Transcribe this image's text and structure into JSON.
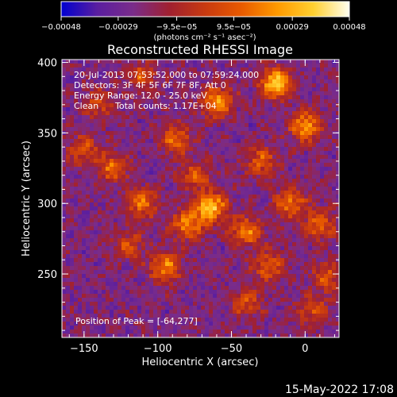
{
  "chart_data": {
    "type": "heatmap",
    "title": "Reconstructed RHESSI Image",
    "xlabel": "Heliocentric X (arcsec)",
    "ylabel": "Heliocentric Y (arcsec)",
    "xlim": [
      -165,
      23
    ],
    "ylim": [
      205,
      402
    ],
    "x_ticks": [
      -150,
      -100,
      -50,
      0
    ],
    "y_ticks": [
      250,
      300,
      350,
      400
    ],
    "x_tick_labels": [
      "−150",
      "−100",
      "−50",
      "0"
    ],
    "y_tick_labels": [
      "250",
      "300",
      "350",
      "400"
    ],
    "colorbar": {
      "range": [
        -0.00048,
        0.00048
      ],
      "tick_values": [
        -0.00048,
        -0.00029,
        -9.5e-05,
        9.5e-05,
        0.00029,
        0.00048
      ],
      "tick_labels": [
        "−0.00048",
        "−0.00029",
        "−9.5e−05",
        "9.5e−05",
        "0.00029",
        "0.00048"
      ],
      "unit_label": "(photons cm⁻² s⁻¹ asec⁻²)",
      "colors": [
        "#0000d0",
        "#5a1ea0",
        "#7a2c8a",
        "#a02030",
        "#c83a10",
        "#e85a00",
        "#ff9a00",
        "#ffd030",
        "#fffff0"
      ]
    },
    "annotations": {
      "time_range": "20-Jul-2013 07:53:52.000 to 07:59:24.000",
      "detectors": "Detectors: 3F 4F 5F 6F 7F 8F, Att 0",
      "energy_range": "Energy Range: 12.0 - 25.0 keV",
      "method": "Clean",
      "total_counts": "Total counts: 1.17E+04",
      "peak": "Position of Peak = [-64,277]"
    },
    "peak": {
      "x": -64,
      "y": 277
    },
    "bright_blobs": [
      {
        "x": -20,
        "y": 385,
        "amp": 1.0
      },
      {
        "x": -60,
        "y": 372,
        "amp": 0.8
      },
      {
        "x": 0,
        "y": 355,
        "amp": 0.8
      },
      {
        "x": -88,
        "y": 345,
        "amp": 0.6
      },
      {
        "x": -130,
        "y": 325,
        "amp": 0.6
      },
      {
        "x": -150,
        "y": 338,
        "amp": 0.5
      },
      {
        "x": -110,
        "y": 300,
        "amp": 0.6
      },
      {
        "x": -64,
        "y": 297,
        "amp": 0.95
      },
      {
        "x": -80,
        "y": 285,
        "amp": 0.7
      },
      {
        "x": -40,
        "y": 280,
        "amp": 0.7
      },
      {
        "x": -10,
        "y": 300,
        "amp": 0.65
      },
      {
        "x": 10,
        "y": 285,
        "amp": 0.6
      },
      {
        "x": -120,
        "y": 270,
        "amp": 0.45
      },
      {
        "x": -95,
        "y": 255,
        "amp": 0.7
      },
      {
        "x": -25,
        "y": 255,
        "amp": 0.55
      },
      {
        "x": 15,
        "y": 248,
        "amp": 0.5
      },
      {
        "x": -40,
        "y": 230,
        "amp": 0.45
      },
      {
        "x": 5,
        "y": 225,
        "amp": 0.45
      },
      {
        "x": -75,
        "y": 320,
        "amp": 0.5
      },
      {
        "x": -30,
        "y": 330,
        "amp": 0.55
      },
      {
        "x": -140,
        "y": 370,
        "amp": 0.45
      },
      {
        "x": -110,
        "y": 390,
        "amp": 0.5
      }
    ]
  },
  "footer": {
    "date": "15-May-2022 17:08"
  }
}
